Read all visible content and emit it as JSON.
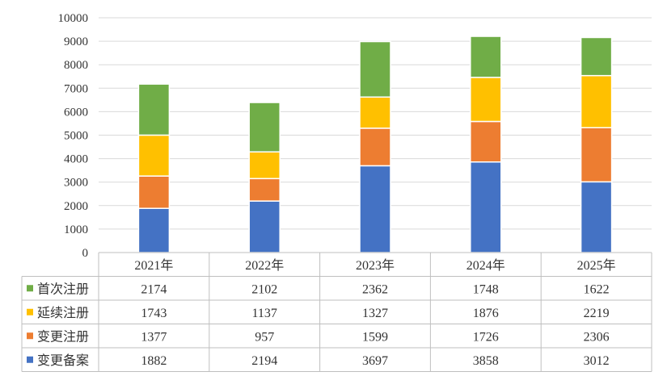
{
  "chart_data": {
    "type": "bar",
    "stacked": true,
    "categories": [
      "2021年",
      "2022年",
      "2023年",
      "2024年",
      "2025年"
    ],
    "series": [
      {
        "name": "变更备案",
        "color": "#4472C4",
        "values": [
          1882,
          2194,
          3697,
          3858,
          3012
        ]
      },
      {
        "name": "变更注册",
        "color": "#ED7D31",
        "values": [
          1377,
          957,
          1599,
          1726,
          2306
        ]
      },
      {
        "name": "延续注册",
        "color": "#FFC000",
        "values": [
          1743,
          1137,
          1327,
          1876,
          2219
        ]
      },
      {
        "name": "首次注册",
        "color": "#70AD47",
        "values": [
          2174,
          2102,
          2362,
          1748,
          1622
        ]
      }
    ],
    "table_row_order": [
      "首次注册",
      "延续注册",
      "变更注册",
      "变更备案"
    ],
    "ylim": [
      0,
      10000
    ],
    "ytick_step": 1000,
    "grid": true,
    "legend": "data-table"
  }
}
